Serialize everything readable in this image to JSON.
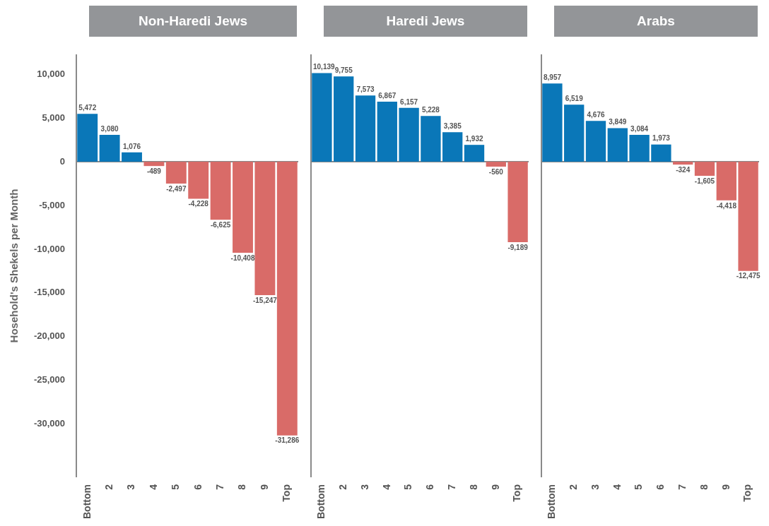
{
  "chart_data": [
    {
      "type": "bar",
      "title": "Non-Haredi Jews",
      "ylabel": "Hosehold's Shekels per Month",
      "categories": [
        "Bottom",
        "2",
        "3",
        "4",
        "5",
        "6",
        "7",
        "8",
        "9",
        "Top"
      ],
      "values": [
        5472,
        3080,
        1076,
        -489,
        -2497,
        -4228,
        -6625,
        -10408,
        -15247,
        -31286
      ],
      "value_labels": [
        "5,472",
        "3,080",
        "1,076",
        "-489",
        "-2,497",
        "-4,228",
        "-6,625",
        "-10,408",
        "-15,247",
        "-31,286"
      ],
      "colors": [
        "#0a77b8",
        "#0a77b8",
        "#0a77b8",
        "#d96b68",
        "#d96b68",
        "#d96b68",
        "#d96b68",
        "#d96b68",
        "#d96b68",
        "#d96b68"
      ],
      "ylim": [
        -36000,
        12200
      ],
      "yticks": [
        {
          "value": -30000,
          "label": "-30,000"
        },
        {
          "value": -25000,
          "label": "-25,000"
        },
        {
          "value": -20000,
          "label": "-20,000"
        },
        {
          "value": -15000,
          "label": "-15,000"
        },
        {
          "value": -10000,
          "label": "-10,000"
        },
        {
          "value": -5000,
          "label": "-5,000"
        },
        0,
        {
          "value": 5000,
          "label": "5,000"
        },
        {
          "value": 10000,
          "label": "10,000"
        }
      ]
    },
    {
      "type": "bar",
      "title": "Haredi Jews",
      "categories": [
        "Bottom",
        "2",
        "3",
        "4",
        "5",
        "6",
        "7",
        "8",
        "9",
        "Top"
      ],
      "values": [
        10139,
        9755,
        7573,
        6867,
        6157,
        5228,
        3385,
        1932,
        -560,
        -9189
      ],
      "value_labels": [
        "10,139",
        "9,755",
        "7,573",
        "6,867",
        "6,157",
        "5,228",
        "3,385",
        "1,932",
        "-560",
        "-9,189"
      ],
      "colors": [
        "#0a77b8",
        "#0a77b8",
        "#0a77b8",
        "#0a77b8",
        "#0a77b8",
        "#0a77b8",
        "#0a77b8",
        "#0a77b8",
        "#d96b68",
        "#d96b68"
      ],
      "ylim": [
        -36000,
        12200
      ],
      "tick_labels": "x"
    },
    {
      "type": "bar",
      "title": "Arabs",
      "categories": [
        "Bottom",
        "2",
        "3",
        "4",
        "5",
        "6",
        "7",
        "8",
        "9",
        "Top"
      ],
      "values": [
        8957,
        6519,
        4676,
        3849,
        3084,
        1973,
        -324,
        -1605,
        -4418,
        -12475
      ],
      "value_labels": [
        "8,957",
        "6,519",
        "4,676",
        "3,849",
        "3,084",
        "1,973",
        "-324",
        "-1,605",
        "-4,418",
        "-12,475"
      ],
      "colors": [
        "#0a77b8",
        "#0a77b8",
        "#0a77b8",
        "#0a77b8",
        "#0a77b8",
        "#0a77b8",
        "#d96b68",
        "#d96b68",
        "#d96b68",
        "#d96b68"
      ],
      "ylim": [
        -36000,
        12200
      ],
      "tick_labels": "x"
    }
  ]
}
